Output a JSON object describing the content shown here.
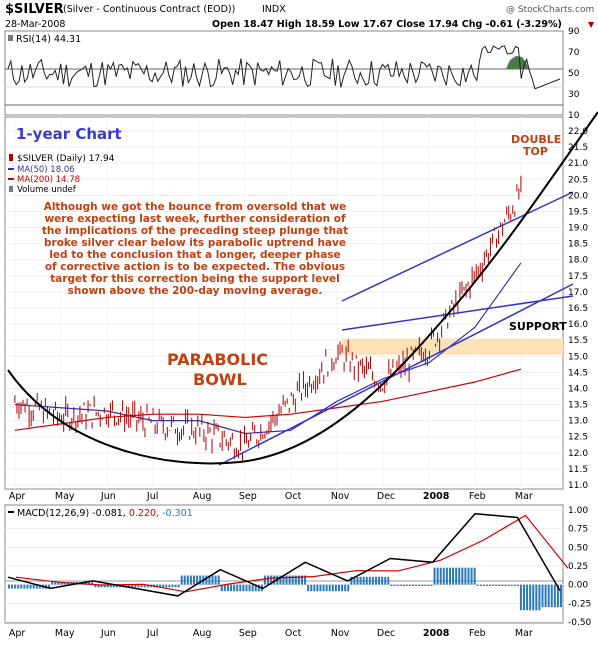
{
  "header": {
    "symbol": "$SILVER",
    "name": "(Silver - Continuous Contract (EOD))",
    "exchange": "INDX",
    "date": "28-Mar-2008",
    "quote": "Open 18.47  High 18.59  Low 17.67  Close 17.94  Chg -0.61 (-3.29%)",
    "source": "@ StockCharts.com"
  },
  "rsi_panel": {
    "label": "RSI(14) 44.31",
    "ticks": [
      "90",
      "70",
      "50",
      "30",
      "10"
    ]
  },
  "price_panel": {
    "chart_title": "1-year Chart",
    "legend": [
      "$SILVER (Daily) 17.94",
      "MA(50) 18.06",
      "MA(200) 14.78",
      "Volume undef"
    ],
    "commentary": [
      "Although we got the bounce from oversold that we",
      "were expecting last week, further consideration of",
      "the implications of the preceding steep plunge that",
      "broke silver clear below its parabolic uptrend have",
      "led to the conclusion that a longer, deeper phase",
      "of corrective action is to be expected. The obvious",
      "target for this correction being the support level",
      "shown above the 200-day moving average."
    ],
    "annotations": {
      "parabolic_1": "PARABOLIC",
      "parabolic_2": "BOWL",
      "double_1": "DOUBLE",
      "double_2": "TOP",
      "support": "SUPPORT"
    },
    "ticks": [
      "22.0",
      "21.5",
      "21.0",
      "20.5",
      "20.0",
      "19.5",
      "19.0",
      "18.5",
      "18.0",
      "17.5",
      "17.0",
      "16.5",
      "16.0",
      "15.5",
      "15.0",
      "14.5",
      "14.0",
      "13.5",
      "13.0",
      "12.5",
      "12.0",
      "11.5",
      "11.0"
    ],
    "x_labels": [
      "Apr",
      "May",
      "Jun",
      "Jul",
      "Aug",
      "Sep",
      "Oct",
      "Nov",
      "Dec",
      "2008",
      "Feb",
      "Mar"
    ]
  },
  "macd_panel": {
    "label_main": "MACD(12,26,9) -0.081,",
    "label_signal": "0.220,",
    "label_hist": "-0.301",
    "ticks": [
      "1.00",
      "0.75",
      "0.50",
      "0.25",
      "0.00",
      "-0.25",
      "-0.50"
    ],
    "x_labels": [
      "Apr",
      "May",
      "Jun",
      "Jul",
      "Aug",
      "Sep",
      "Oct",
      "Nov",
      "Dec",
      "2008",
      "Feb",
      "Mar"
    ]
  },
  "colors": {
    "price_bars": "#b00000",
    "ma50": "#3333aa",
    "ma200": "#d00000",
    "trend_channel": "#3333cc",
    "parabola": "#000000",
    "support_band": "#fde2b8",
    "annotation_text": "#c04010",
    "title_blue": "#3a3ad0",
    "macd_hist": "#2a7ac0"
  },
  "chart_data": {
    "type": "line",
    "title": "$SILVER (Silver - Continuous Contract (EOD))",
    "x": [
      "Apr",
      "May",
      "Jun",
      "Jul",
      "Aug",
      "Sep",
      "Oct",
      "Nov",
      "Dec",
      "2008",
      "Feb",
      "Mar"
    ],
    "series": [
      {
        "name": "$SILVER (Daily) 17.94",
        "values": [
          13.6,
          13.1,
          13.3,
          12.9,
          12.7,
          12.2,
          13.6,
          15.1,
          14.2,
          15.3,
          17.5,
          20.1
        ]
      },
      {
        "name": "MA(50) 18.06",
        "values": [
          13.5,
          13.4,
          13.3,
          13.0,
          13.0,
          12.6,
          12.7,
          13.6,
          14.3,
          14.8,
          15.9,
          17.9
        ]
      },
      {
        "name": "MA(200) 14.78",
        "values": [
          12.7,
          12.9,
          13.1,
          13.2,
          13.2,
          13.1,
          13.2,
          13.4,
          13.6,
          13.9,
          14.2,
          14.6
        ]
      }
    ],
    "ylim": [
      11.0,
      22.0
    ],
    "support_band": [
      15.05,
      15.55
    ],
    "last_close": 17.94,
    "rsi": {
      "label": "RSI(14) 44.31",
      "ylim": [
        10,
        90
      ],
      "levels": [
        70,
        30
      ],
      "last": 44.31
    },
    "macd": {
      "macd": -0.081,
      "signal": 0.22,
      "histogram": -0.301,
      "ylim": [
        -0.5,
        1.0
      ]
    }
  }
}
